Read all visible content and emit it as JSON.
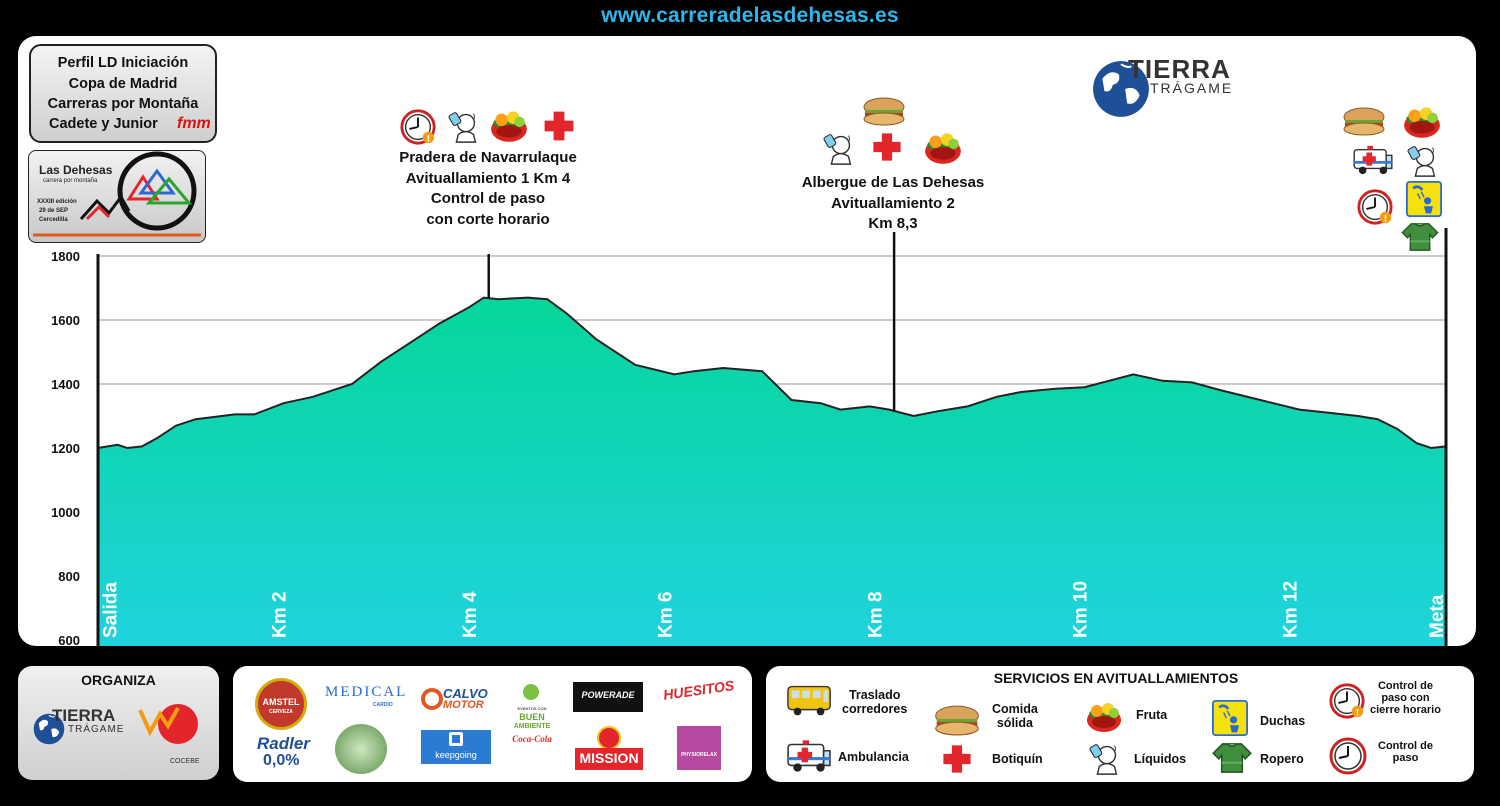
{
  "header": {
    "url": "www.carreradelasdehesas.es"
  },
  "title_box": {
    "line1": "Perfil LD Iniciación",
    "line2": "Copa de Madrid",
    "line3": "Carreras por Montaña",
    "line4": "Cadete y Junior",
    "fmm_logo": "fmm"
  },
  "race_logo": {
    "name": "Las Dehesas",
    "subtitle": "carrera por montaña",
    "edition": "XXXIII edición",
    "date": "29 de SEP",
    "place": "Cercedilla"
  },
  "brand_logo": {
    "word1": "TIERRA",
    "word2": "TRÁGAME"
  },
  "annotations": {
    "aid1": {
      "line1": "Pradera de Navarrulaque",
      "line2": "Avituallamiento 1 Km 4",
      "line3": "Control de paso",
      "line4": "con corte horario"
    },
    "aid2": {
      "line1": "Albergue de Las Dehesas",
      "line2": "Avituallamiento 2",
      "line3": "Km 8,3"
    }
  },
  "chart_data": {
    "type": "area",
    "y_ticks": [
      "1800",
      "1600",
      "1400",
      "1200",
      "1000",
      "800",
      "600"
    ],
    "ylim": [
      600,
      1800
    ],
    "xlim": [
      0,
      13.8
    ],
    "x_labels": [
      {
        "text": "Salida",
        "km": 0.12
      },
      {
        "text": "Km 2",
        "km": 1.85
      },
      {
        "text": "Km 4",
        "km": 3.8
      },
      {
        "text": "Km 6",
        "km": 5.8
      },
      {
        "text": "Km 8",
        "km": 7.95
      },
      {
        "text": "Km 10",
        "km": 10.05
      },
      {
        "text": "Km 12",
        "km": 12.2
      },
      {
        "text": "Meta",
        "km": 13.7
      }
    ],
    "markers": [
      {
        "km": 0,
        "label": "Salida"
      },
      {
        "km": 4,
        "label": "Avituallamiento 1"
      },
      {
        "km": 8.15,
        "label": "Avituallamiento 2"
      },
      {
        "km": 13.8,
        "label": "Meta"
      }
    ],
    "profile_km": [
      0,
      0.2,
      0.3,
      0.45,
      0.6,
      0.8,
      1.0,
      1.4,
      1.6,
      1.9,
      2.2,
      2.6,
      2.9,
      3.2,
      3.5,
      3.8,
      3.95,
      4.1,
      4.4,
      4.6,
      4.8,
      5.1,
      5.5,
      5.9,
      6.1,
      6.4,
      6.8,
      7.1,
      7.4,
      7.6,
      7.9,
      8.1,
      8.35,
      8.6,
      8.9,
      9.2,
      9.45,
      9.8,
      10.1,
      10.35,
      10.6,
      10.9,
      11.2,
      11.5,
      11.9,
      12.3,
      12.6,
      12.9,
      13.1,
      13.3,
      13.5,
      13.65,
      13.8
    ],
    "profile_elev": [
      1200,
      1210,
      1200,
      1205,
      1230,
      1270,
      1290,
      1305,
      1305,
      1340,
      1360,
      1400,
      1470,
      1530,
      1590,
      1640,
      1670,
      1665,
      1670,
      1665,
      1620,
      1540,
      1460,
      1430,
      1440,
      1450,
      1440,
      1350,
      1340,
      1320,
      1330,
      1320,
      1300,
      1315,
      1330,
      1360,
      1375,
      1385,
      1390,
      1410,
      1430,
      1410,
      1405,
      1380,
      1350,
      1320,
      1310,
      1300,
      1290,
      1260,
      1215,
      1200,
      1205
    ]
  },
  "aid_icons": {
    "aid1": [
      "clock-control-icon",
      "water-icon",
      "fruit-bowl-icon",
      "first-aid-cross-icon"
    ],
    "aid2": [
      "sandwich-icon",
      "water-icon",
      "first-aid-cross-icon",
      "fruit-bowl-icon"
    ],
    "finish": [
      "sandwich-icon",
      "fruit-bowl-icon",
      "ambulance-icon",
      "water-icon",
      "clock-control-icon",
      "shower-icon",
      "sweater-icon"
    ]
  },
  "organiza": {
    "title": "ORGANIZA",
    "logo2": "COCEBE"
  },
  "sponsors": {
    "amstel": "AMSTEL",
    "amstel_sub": "CERVEZA",
    "radler": "Radler",
    "radler_sub": "0,0%",
    "medical": "MEDICAL",
    "medical_sub": "CARDIO",
    "calvo": "CALVO",
    "calvo2": "MOTOR",
    "keepgoing": "keepgoing",
    "buen1": "EVENTOS CON",
    "buen2": "BUEN",
    "buen3": "AMBIENTE",
    "cocacola": "Coca-Cola",
    "powerade": "POWERADE",
    "mission": "MISSION",
    "huesitos": "HUESITOS",
    "physiorelax": "PHYSIORELAX"
  },
  "services": {
    "title": "SERVICIOS EN AVITUALLAMIENTOS",
    "traslado": "Traslado\ncorredores",
    "comida": "Comida\nsólida",
    "fruta": "Fruta",
    "duchas": "Duchas",
    "control_cierre": "Control de\npaso con\ncierre horario",
    "ambulancia": "Ambulancia",
    "botiquin": "Botiquín",
    "liquidos": "Líquidos",
    "ropero": "Ropero",
    "control": "Control de\npaso"
  },
  "colors": {
    "area_top": "#06d69a",
    "area_bottom": "#1fd3de",
    "accent_url": "#2fb6ea",
    "red": "#e3262c"
  }
}
